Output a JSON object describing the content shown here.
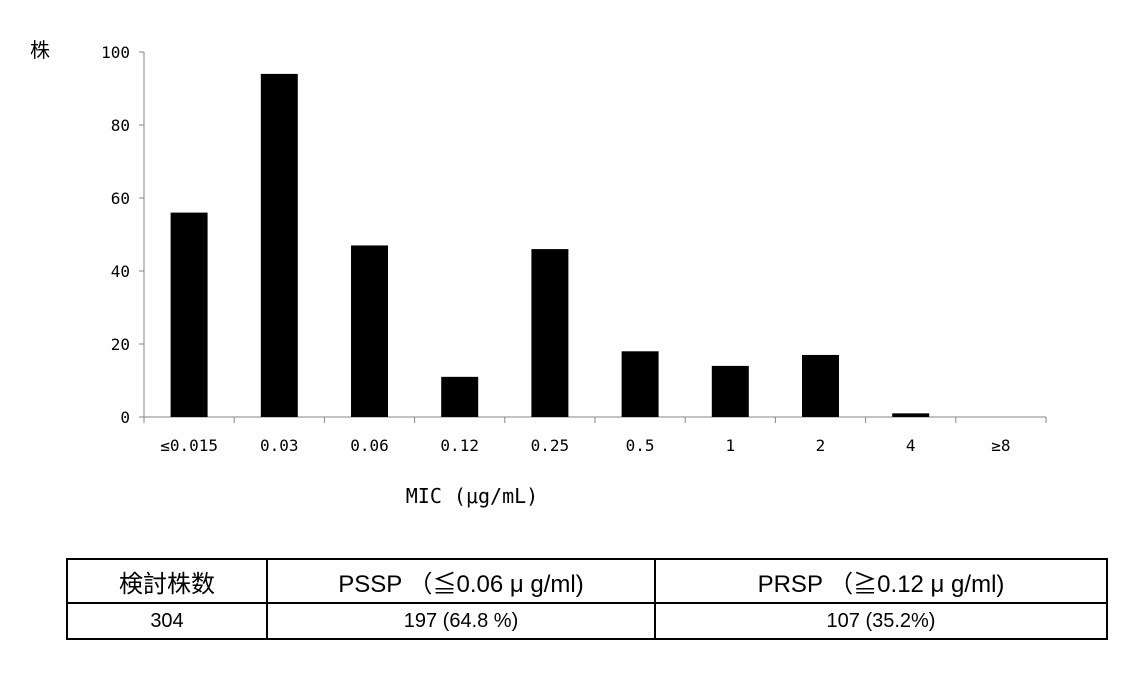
{
  "chart_data": {
    "type": "bar",
    "ylabel": "株",
    "xlabel": "MIC (μg/mL)",
    "categories": [
      "≤0.015",
      "0.03",
      "0.06",
      "0.12",
      "0.25",
      "0.5",
      "1",
      "2",
      "4",
      "≥8"
    ],
    "values": [
      56,
      94,
      47,
      11,
      46,
      18,
      14,
      17,
      1,
      0
    ],
    "ylim": [
      0,
      100
    ],
    "yticks": [
      0,
      20,
      40,
      60,
      80,
      100
    ],
    "bar_color": "#000000",
    "grid": false,
    "legend": "none"
  },
  "table": {
    "headers": [
      "検討株数",
      "PSSP （≦0.06 μ g/ml)",
      "PRSP （≧0.12 μ g/ml)"
    ],
    "row": [
      "304",
      "197 (64.8 %)",
      "107 (35.2%)"
    ]
  }
}
